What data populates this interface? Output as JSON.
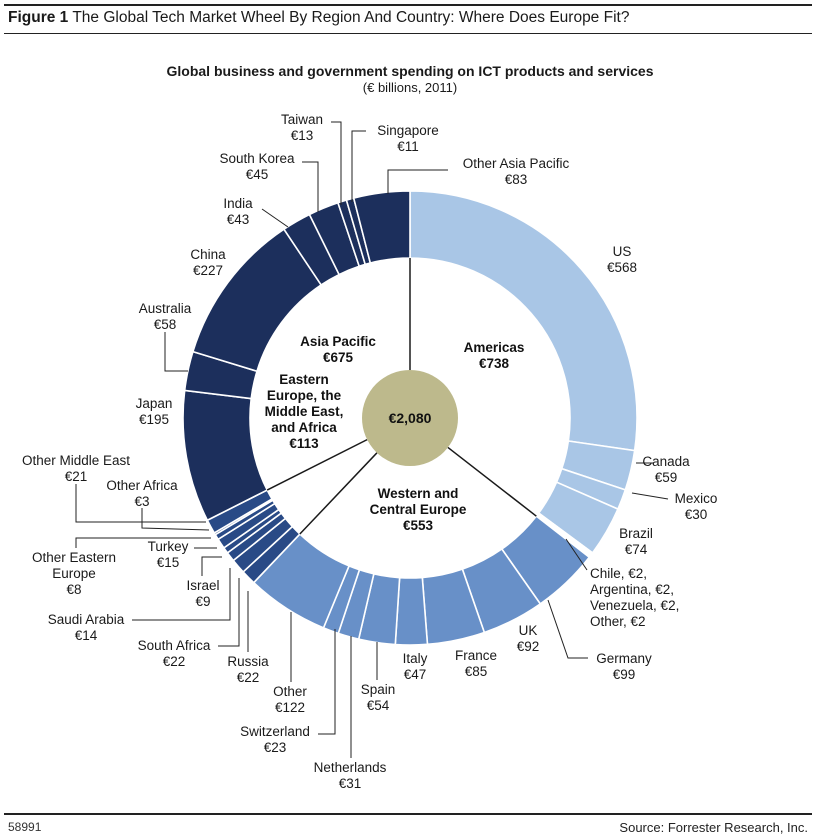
{
  "figure": {
    "label": "Figure 1",
    "title": "The Global Tech Market Wheel By Region And Country: Where Does Europe Fit?",
    "id": "58991",
    "source": "Source: Forrester Research, Inc."
  },
  "chart_data": {
    "type": "donut",
    "title": "Global business and government spending on ICT products and services",
    "subtitle": "(€ billions, 2011)",
    "total_label": "€2,080",
    "total": 2080,
    "colors": {
      "Americas": "#a9c6e6",
      "Western and Central Europe": "#6890c8",
      "Eastern Europe, the Middle East, and Africa": "#294a86",
      "Asia Pacific": "#1c2f5c",
      "center": "#bdb98c"
    },
    "regions": [
      {
        "name": "Americas",
        "label_lines": [
          "Americas",
          "€738"
        ],
        "value": 738
      },
      {
        "name": "Western and Central Europe",
        "label_lines": [
          "Western and",
          "Central Europe",
          "€553"
        ],
        "value": 553
      },
      {
        "name": "Eastern Europe, the Middle East, and Africa",
        "label_lines": [
          "Eastern",
          "Europe, the",
          "Middle East,",
          "and Africa",
          "€113"
        ],
        "value": 113
      },
      {
        "name": "Asia Pacific",
        "label_lines": [
          "Asia Pacific",
          "€675"
        ],
        "value": 675
      }
    ],
    "segments": [
      {
        "region": "Americas",
        "name": "US",
        "value": 568,
        "label_lines": [
          "US",
          "€568"
        ]
      },
      {
        "region": "Americas",
        "name": "Canada",
        "value": 59,
        "label_lines": [
          "Canada",
          "€59"
        ]
      },
      {
        "region": "Americas",
        "name": "Mexico",
        "value": 30,
        "label_lines": [
          "Mexico",
          "€30"
        ]
      },
      {
        "region": "Americas",
        "name": "Brazil",
        "value": 74,
        "label_lines": [
          "Brazil",
          "€74"
        ]
      },
      {
        "region": "Americas",
        "name": "Chile",
        "value": 2,
        "label_lines": [
          "Chile, €2,",
          "Argentina, €2,",
          "Venezuela, €2,",
          "Other, €2"
        ]
      },
      {
        "region": "Americas",
        "name": "Argentina",
        "value": 2,
        "label_lines": []
      },
      {
        "region": "Americas",
        "name": "Venezuela",
        "value": 2,
        "label_lines": []
      },
      {
        "region": "Americas",
        "name": "Other",
        "value": 2,
        "label_lines": []
      },
      {
        "region": "Western and Central Europe",
        "name": "Germany",
        "value": 99,
        "label_lines": [
          "Germany",
          "€99"
        ]
      },
      {
        "region": "Western and Central Europe",
        "name": "UK",
        "value": 92,
        "label_lines": [
          "UK",
          "€92"
        ]
      },
      {
        "region": "Western and Central Europe",
        "name": "France",
        "value": 85,
        "label_lines": [
          "France",
          "€85"
        ]
      },
      {
        "region": "Western and Central Europe",
        "name": "Italy",
        "value": 47,
        "label_lines": [
          "Italy",
          "€47"
        ]
      },
      {
        "region": "Western and Central Europe",
        "name": "Spain",
        "value": 54,
        "label_lines": [
          "Spain",
          "€54"
        ]
      },
      {
        "region": "Western and Central Europe",
        "name": "Netherlands",
        "value": 31,
        "label_lines": [
          "Netherlands",
          "€31"
        ]
      },
      {
        "region": "Western and Central Europe",
        "name": "Switzerland",
        "value": 23,
        "label_lines": [
          "Switzerland",
          "€23"
        ]
      },
      {
        "region": "Western and Central Europe",
        "name": "Other",
        "value": 122,
        "label_lines": [
          "Other",
          "€122"
        ]
      },
      {
        "region": "Eastern Europe, the Middle East, and Africa",
        "name": "Russia",
        "value": 22,
        "label_lines": [
          "Russia",
          "€22"
        ]
      },
      {
        "region": "Eastern Europe, the Middle East, and Africa",
        "name": "South Africa",
        "value": 22,
        "label_lines": [
          "South Africa",
          "€22"
        ]
      },
      {
        "region": "Eastern Europe, the Middle East, and Africa",
        "name": "Saudi Arabia",
        "value": 14,
        "label_lines": [
          "Saudi Arabia",
          "€14"
        ]
      },
      {
        "region": "Eastern Europe, the Middle East, and Africa",
        "name": "Israel",
        "value": 9,
        "label_lines": [
          "Israel",
          "€9"
        ]
      },
      {
        "region": "Eastern Europe, the Middle East, and Africa",
        "name": "Turkey",
        "value": 15,
        "label_lines": [
          "Turkey",
          "€15"
        ]
      },
      {
        "region": "Eastern Europe, the Middle East, and Africa",
        "name": "Other Eastern Europe",
        "value": 8,
        "label_lines": [
          "Other Eastern",
          "Europe",
          "€8"
        ]
      },
      {
        "region": "Eastern Europe, the Middle East, and Africa",
        "name": "Other Africa",
        "value": 3,
        "label_lines": [
          "Other Africa",
          "€3"
        ]
      },
      {
        "region": "Eastern Europe, the Middle East, and Africa",
        "name": "Other Middle East",
        "value": 21,
        "label_lines": [
          "Other Middle East",
          "€21"
        ]
      },
      {
        "region": "Asia Pacific",
        "name": "Japan",
        "value": 195,
        "label_lines": [
          "Japan",
          "€195"
        ]
      },
      {
        "region": "Asia Pacific",
        "name": "Australia",
        "value": 58,
        "label_lines": [
          "Australia",
          "€58"
        ]
      },
      {
        "region": "Asia Pacific",
        "name": "China",
        "value": 227,
        "label_lines": [
          "China",
          "€227"
        ]
      },
      {
        "region": "Asia Pacific",
        "name": "India",
        "value": 43,
        "label_lines": [
          "India",
          "€43"
        ]
      },
      {
        "region": "Asia Pacific",
        "name": "South Korea",
        "value": 45,
        "label_lines": [
          "South Korea",
          "€45"
        ]
      },
      {
        "region": "Asia Pacific",
        "name": "Taiwan",
        "value": 13,
        "label_lines": [
          "Taiwan",
          "€13"
        ]
      },
      {
        "region": "Asia Pacific",
        "name": "Singapore",
        "value": 11,
        "label_lines": [
          "Singapore",
          "€11"
        ]
      },
      {
        "region": "Asia Pacific",
        "name": "Other Asia Pacific",
        "value": 83,
        "label_lines": [
          "Other Asia Pacific",
          "€83"
        ]
      }
    ]
  }
}
